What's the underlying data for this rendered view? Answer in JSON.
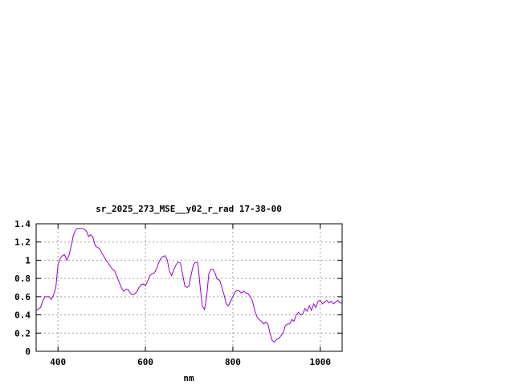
{
  "chart_data": {
    "type": "line",
    "title": "sr_2025_273_MSE__y02_r_rad 17-38-00",
    "xlabel": "nm",
    "ylabel": "",
    "xlim": [
      350,
      1050
    ],
    "ylim": [
      0,
      1.4
    ],
    "x_ticks": [
      400,
      600,
      800,
      1000
    ],
    "x_tick_labels": [
      "400",
      "600",
      "800",
      "1000"
    ],
    "y_ticks": [
      0,
      0.2,
      0.4,
      0.6,
      0.8,
      1,
      1.2,
      1.4
    ],
    "y_tick_labels": [
      "0",
      "0.2",
      "0.4",
      "0.6",
      "0.8",
      "1",
      "1.2",
      "1.4"
    ],
    "grid": true,
    "legend": "none",
    "series": [
      {
        "color": "#9400d3",
        "x": [
          350,
          360,
          365,
          370,
          375,
          380,
          385,
          390,
          395,
          400,
          405,
          410,
          415,
          420,
          425,
          430,
          435,
          440,
          445,
          450,
          455,
          460,
          465,
          470,
          475,
          480,
          485,
          490,
          495,
          500,
          505,
          510,
          515,
          520,
          525,
          530,
          535,
          540,
          545,
          550,
          555,
          560,
          565,
          570,
          575,
          580,
          585,
          590,
          595,
          600,
          605,
          610,
          615,
          620,
          625,
          630,
          635,
          640,
          645,
          650,
          655,
          660,
          665,
          670,
          675,
          680,
          685,
          690,
          695,
          700,
          705,
          710,
          715,
          720,
          725,
          730,
          735,
          740,
          745,
          750,
          755,
          760,
          763,
          766,
          770,
          775,
          780,
          785,
          790,
          795,
          800,
          805,
          810,
          815,
          820,
          825,
          830,
          835,
          840,
          845,
          850,
          855,
          860,
          865,
          870,
          875,
          880,
          885,
          890,
          895,
          900,
          905,
          910,
          915,
          920,
          925,
          930,
          935,
          940,
          945,
          950,
          955,
          960,
          965,
          970,
          975,
          980,
          985,
          990,
          995,
          1000,
          1005,
          1010,
          1015,
          1020,
          1025,
          1030,
          1035,
          1040,
          1045,
          1050
        ],
        "y": [
          0.45,
          0.48,
          0.55,
          0.6,
          0.6,
          0.6,
          0.57,
          0.62,
          0.7,
          0.95,
          1.02,
          1.05,
          1.06,
          1.0,
          1.05,
          1.15,
          1.27,
          1.33,
          1.35,
          1.35,
          1.35,
          1.34,
          1.32,
          1.26,
          1.28,
          1.25,
          1.16,
          1.14,
          1.13,
          1.08,
          1.04,
          1.0,
          0.97,
          0.93,
          0.9,
          0.88,
          0.82,
          0.76,
          0.7,
          0.66,
          0.68,
          0.68,
          0.64,
          0.62,
          0.63,
          0.65,
          0.7,
          0.73,
          0.74,
          0.72,
          0.77,
          0.83,
          0.85,
          0.86,
          0.9,
          0.97,
          1.02,
          1.04,
          1.05,
          1.0,
          0.88,
          0.83,
          0.9,
          0.95,
          0.98,
          0.97,
          0.85,
          0.72,
          0.7,
          0.72,
          0.85,
          0.95,
          0.98,
          0.97,
          0.72,
          0.5,
          0.46,
          0.6,
          0.85,
          0.9,
          0.9,
          0.85,
          0.8,
          0.79,
          0.78,
          0.7,
          0.62,
          0.52,
          0.5,
          0.55,
          0.6,
          0.65,
          0.67,
          0.66,
          0.64,
          0.66,
          0.64,
          0.63,
          0.6,
          0.55,
          0.45,
          0.38,
          0.35,
          0.33,
          0.3,
          0.32,
          0.3,
          0.2,
          0.12,
          0.1,
          0.13,
          0.14,
          0.17,
          0.2,
          0.28,
          0.3,
          0.3,
          0.35,
          0.33,
          0.4,
          0.43,
          0.4,
          0.41,
          0.47,
          0.44,
          0.5,
          0.45,
          0.52,
          0.48,
          0.55,
          0.56,
          0.52,
          0.54,
          0.56,
          0.53,
          0.55,
          0.52,
          0.54,
          0.56,
          0.53,
          0.53
        ]
      }
    ]
  }
}
